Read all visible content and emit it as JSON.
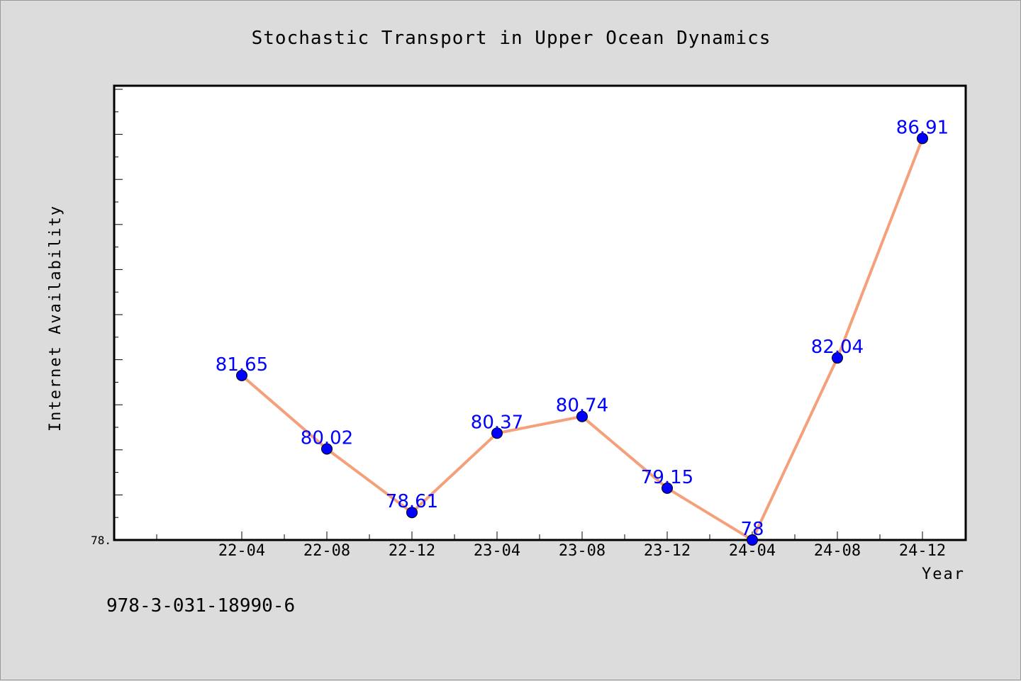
{
  "chart_data": {
    "type": "line",
    "title": "Stochastic Transport in Upper Ocean Dynamics",
    "xlabel": "Year",
    "ylabel": "Internet Availability",
    "categories": [
      "22-04",
      "22-08",
      "22-12",
      "23-04",
      "23-08",
      "23-12",
      "24-04",
      "24-08",
      "24-12"
    ],
    "series": [
      {
        "values": [
          81.65,
          80.02,
          78.61,
          80.37,
          80.74,
          79.15,
          78.0,
          82.04,
          86.91
        ],
        "labels": [
          "81.65",
          "80.02",
          "78.61",
          "80.37",
          "80.74",
          "79.15",
          "78",
          "82.04",
          "86.91"
        ],
        "line_color": "#f4a07a",
        "marker_color": "#0000ff"
      }
    ],
    "ylim": [
      78.0,
      88.0
    ],
    "y_tick_labels": [
      "78."
    ],
    "grid": false,
    "legend": "none"
  },
  "footer": {
    "isbn": "978-3-031-18990-6"
  }
}
